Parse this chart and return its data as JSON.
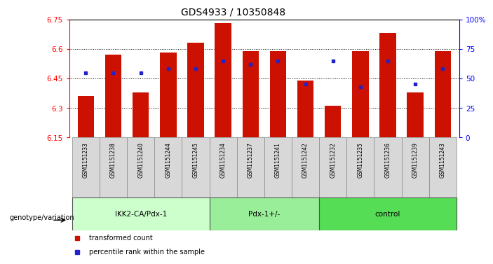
{
  "title": "GDS4933 / 10350848",
  "samples": [
    "GSM1151233",
    "GSM1151238",
    "GSM1151240",
    "GSM1151244",
    "GSM1151245",
    "GSM1151234",
    "GSM1151237",
    "GSM1151241",
    "GSM1151242",
    "GSM1151232",
    "GSM1151235",
    "GSM1151236",
    "GSM1151239",
    "GSM1151243"
  ],
  "bar_values": [
    6.36,
    6.57,
    6.38,
    6.58,
    6.63,
    6.73,
    6.59,
    6.59,
    6.44,
    6.31,
    6.59,
    6.68,
    6.38,
    6.59
  ],
  "percentile_rank": [
    55,
    55,
    55,
    58,
    58,
    65,
    62,
    65,
    45,
    65,
    43,
    65,
    45,
    58
  ],
  "ymin": 6.15,
  "ymax": 6.75,
  "bar_color": "#CC1100",
  "dot_color": "#2222CC",
  "groups": [
    {
      "label": "IKK2-CA/Pdx-1",
      "start": 0,
      "end": 5,
      "color": "#ccffcc"
    },
    {
      "label": "Pdx-1+/-",
      "start": 5,
      "end": 9,
      "color": "#88ee88"
    },
    {
      "label": "control",
      "start": 9,
      "end": 14,
      "color": "#55dd55"
    }
  ],
  "right_yticks": [
    0,
    25,
    50,
    75,
    100
  ],
  "left_yticks": [
    6.15,
    6.3,
    6.45,
    6.6,
    6.75
  ],
  "dotted_lines": [
    6.3,
    6.45,
    6.6
  ],
  "legend_items": [
    "transformed count",
    "percentile rank within the sample"
  ],
  "legend_colors": [
    "#CC1100",
    "#2222CC"
  ],
  "genotype_label": "genotype/variation"
}
